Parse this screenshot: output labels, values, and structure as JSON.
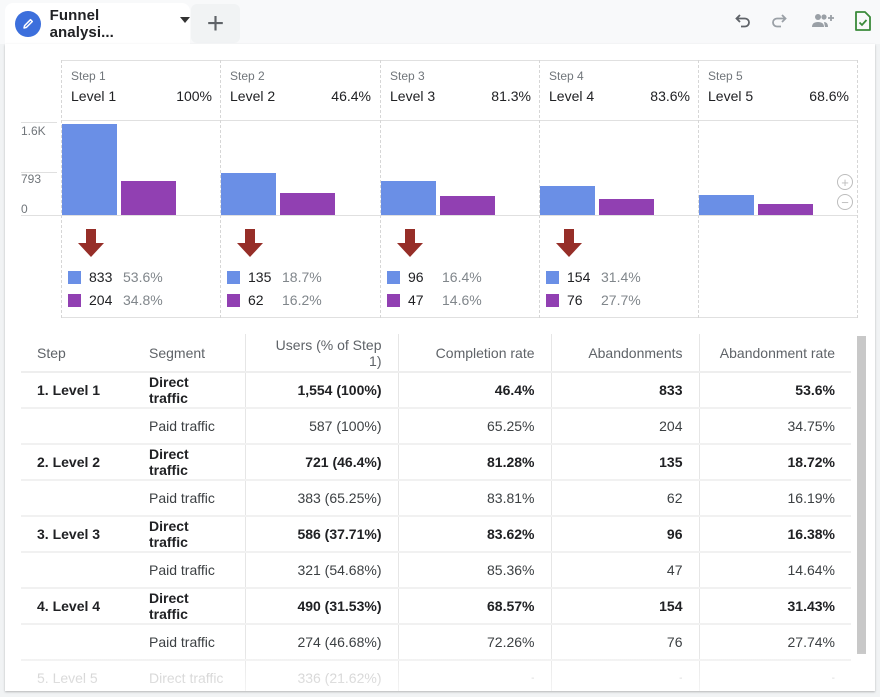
{
  "tabs": {
    "active_title": "Funnel analysi...",
    "active_icon": "pencil-icon",
    "add_label": "+"
  },
  "toolbar": {
    "undo_icon": "undo-icon",
    "redo_icon": "redo-icon",
    "share_icon": "share-users-icon",
    "saved_icon": "saved-check-icon"
  },
  "colors": {
    "direct": "#6a8fe6",
    "paid": "#9140b2",
    "arrow": "#962e28"
  },
  "chart_data": {
    "type": "bar",
    "title": "Funnel",
    "y_ticks": [
      "1.6K",
      "793",
      "0"
    ],
    "ylim": [
      0,
      1586
    ],
    "categories": [
      "Level 1",
      "Level 2",
      "Level 3",
      "Level 4",
      "Level 5"
    ],
    "steps": [
      {
        "step": "Step 1",
        "name": "Level 1",
        "pct": "100%"
      },
      {
        "step": "Step 2",
        "name": "Level 2",
        "pct": "46.4%"
      },
      {
        "step": "Step 3",
        "name": "Level 3",
        "pct": "81.3%"
      },
      {
        "step": "Step 4",
        "name": "Level 4",
        "pct": "83.6%"
      },
      {
        "step": "Step 5",
        "name": "Level 5",
        "pct": "68.6%"
      }
    ],
    "series": [
      {
        "name": "Direct traffic",
        "values": [
          1554,
          721,
          586,
          490,
          336
        ]
      },
      {
        "name": "Paid traffic",
        "values": [
          587,
          383,
          321,
          274,
          190
        ]
      }
    ],
    "abandonments": [
      {
        "direct": "833",
        "direct_pct": "53.6%",
        "paid": "204",
        "paid_pct": "34.8%"
      },
      {
        "direct": "135",
        "direct_pct": "18.7%",
        "paid": "62",
        "paid_pct": "16.2%"
      },
      {
        "direct": "96",
        "direct_pct": "16.4%",
        "paid": "47",
        "paid_pct": "14.6%"
      },
      {
        "direct": "154",
        "direct_pct": "31.4%",
        "paid": "76",
        "paid_pct": "27.7%"
      }
    ]
  },
  "table": {
    "headers": [
      "Step",
      "Segment",
      "Users (% of Step 1)",
      "Completion rate",
      "Abandonments",
      "Abandonment rate"
    ],
    "rows": [
      {
        "step": "1. Level 1",
        "segment": "Direct traffic",
        "users": "1,554 (100%)",
        "completion": "46.4%",
        "abandonments": "833",
        "abandonment_rate": "53.6%"
      },
      {
        "step": "",
        "segment": "Paid traffic",
        "users": "587 (100%)",
        "completion": "65.25%",
        "abandonments": "204",
        "abandonment_rate": "34.75%"
      },
      {
        "step": "2. Level 2",
        "segment": "Direct traffic",
        "users": "721 (46.4%)",
        "completion": "81.28%",
        "abandonments": "135",
        "abandonment_rate": "18.72%"
      },
      {
        "step": "",
        "segment": "Paid traffic",
        "users": "383 (65.25%)",
        "completion": "83.81%",
        "abandonments": "62",
        "abandonment_rate": "16.19%"
      },
      {
        "step": "3. Level 3",
        "segment": "Direct traffic",
        "users": "586 (37.71%)",
        "completion": "83.62%",
        "abandonments": "96",
        "abandonment_rate": "16.38%"
      },
      {
        "step": "",
        "segment": "Paid traffic",
        "users": "321 (54.68%)",
        "completion": "85.36%",
        "abandonments": "47",
        "abandonment_rate": "14.64%"
      },
      {
        "step": "4. Level 4",
        "segment": "Direct traffic",
        "users": "490 (31.53%)",
        "completion": "68.57%",
        "abandonments": "154",
        "abandonment_rate": "31.43%"
      },
      {
        "step": "",
        "segment": "Paid traffic",
        "users": "274 (46.68%)",
        "completion": "72.26%",
        "abandonments": "76",
        "abandonment_rate": "27.74%"
      },
      {
        "step": "5. Level 5",
        "segment": "Direct traffic",
        "users": "336 (21.62%)",
        "completion": "-",
        "abandonments": "-",
        "abandonment_rate": "-"
      }
    ]
  }
}
